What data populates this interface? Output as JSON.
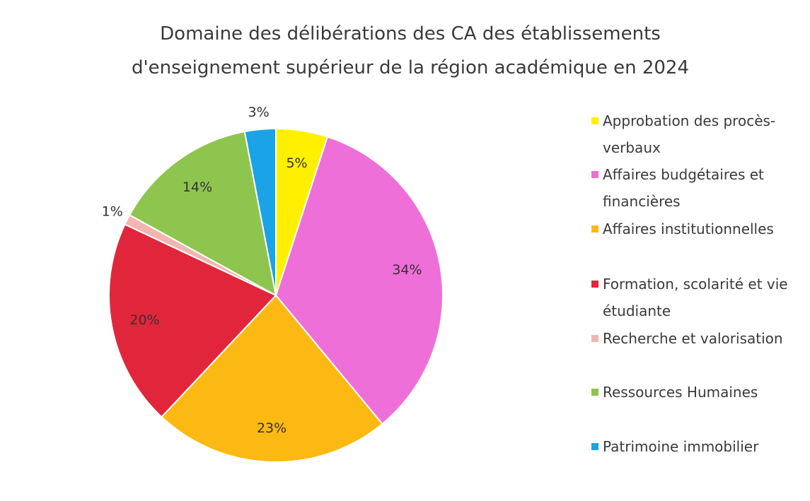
{
  "chart_data": {
    "type": "pie",
    "title": "Domaine des délibérations des CA des établissements d'enseignement supérieur de la région académique en 2024",
    "categories": [
      "Approbation des procès-verbaux",
      "Affaires budgétaires et financières",
      "Affaires institutionnelles",
      "Formation, scolarité et vie étudiante",
      "Recherche et valorisation",
      "Ressources Humaines",
      "Patrimoine immobilier"
    ],
    "values": [
      5,
      34,
      23,
      20,
      1,
      14,
      3
    ],
    "value_labels": [
      "5%",
      "34%",
      "23%",
      "20%",
      "1%",
      "14%",
      "3%"
    ],
    "colors": [
      "#fff000",
      "#ee6fd8",
      "#fdb913",
      "#e1263c",
      "#f2b5b0",
      "#8dc54f",
      "#1aa3e6"
    ],
    "legend": "right"
  }
}
